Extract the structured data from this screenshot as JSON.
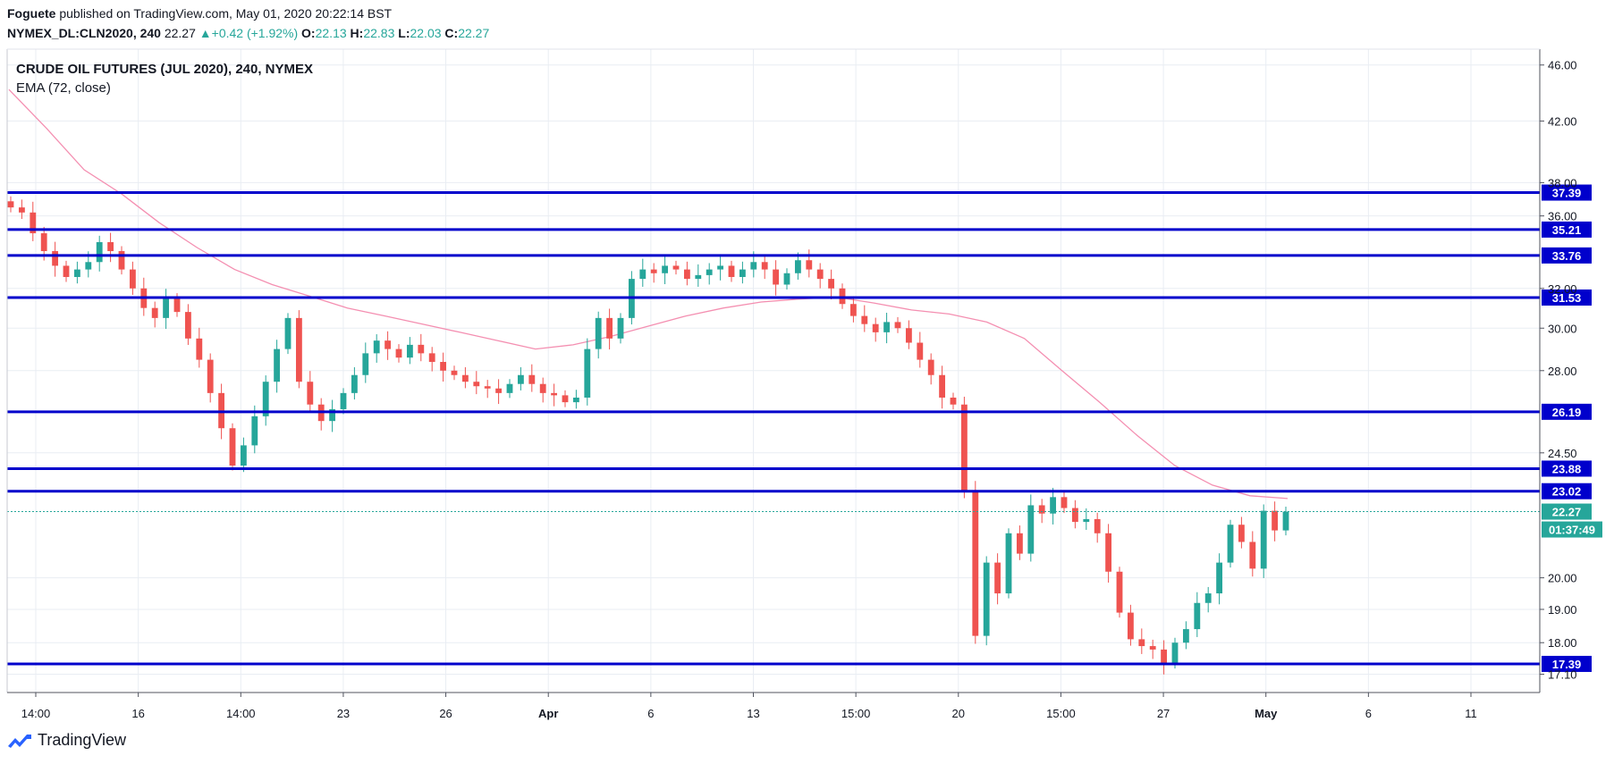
{
  "header": {
    "author": "Foguete",
    "published_text": "published on TradingView.com, May 01, 2020 20:22:14 BST",
    "symbol": "NYMEX_DL:CLN2020, 240",
    "last": "22.27",
    "change": "+0.42 (+1.92%)",
    "o_label": "O:",
    "o_value": "22.13",
    "h_label": "H:",
    "h_value": "22.83",
    "l_label": "L:",
    "l_value": "22.03",
    "c_label": "C:",
    "c_value": "22.27"
  },
  "footer": {
    "brand": "TradingView"
  },
  "colors": {
    "up": "#26a69a",
    "down": "#ef5350",
    "level": "#0000cc",
    "ema": "#f48fb1",
    "grid": "#e9edf3",
    "price_tag": "#26a69a"
  },
  "chart_data": {
    "type": "candlestick",
    "title": "CRUDE OIL FUTURES (JUL 2020), 240, NYMEX",
    "indicator": "EMA (72, close)",
    "y_scale": "log",
    "ylim": [
      16.6,
      47.2
    ],
    "y_ticks": [
      "46.00",
      "42.00",
      "38.00",
      "36.00",
      "32.00",
      "30.00",
      "28.00",
      "24.50",
      "20.00",
      "19.00",
      "18.00",
      "17.10"
    ],
    "y_tick_values": [
      46,
      42,
      38,
      36,
      32,
      30,
      28,
      24.5,
      20,
      19,
      18,
      17.1
    ],
    "x_ticks": [
      "14:00",
      "16",
      "14:00",
      "23",
      "26",
      "Apr",
      "6",
      "13",
      "15:00",
      "20",
      "15:00",
      "27",
      "May",
      "6",
      "11"
    ],
    "bold_x_ticks": [
      "Apr",
      "May"
    ],
    "horizontal_levels": [
      37.39,
      35.21,
      33.76,
      31.53,
      26.19,
      23.88,
      23.02,
      17.39
    ],
    "level_labels": [
      "37.39",
      "35.21",
      "33.76",
      "31.53",
      "26.19",
      "23.88",
      "23.02",
      "17.39"
    ],
    "last_price": 22.27,
    "last_price_label": "22.27",
    "countdown": "01:37:49",
    "close_path": [
      36.5,
      36.2,
      35.0,
      34.0,
      33.2,
      32.6,
      33.0,
      33.4,
      34.5,
      34.0,
      33.0,
      32.0,
      31.0,
      30.5,
      31.5,
      30.8,
      29.5,
      28.5,
      27.0,
      25.5,
      24.0,
      24.8,
      26.0,
      27.5,
      29.0,
      30.5,
      27.5,
      26.5,
      25.8,
      26.3,
      27.0,
      27.8,
      28.8,
      29.4,
      29.0,
      28.6,
      29.2,
      28.8,
      28.4,
      28.0,
      27.8,
      27.5,
      27.3,
      27.2,
      27.0,
      27.4,
      27.8,
      27.4,
      27.0,
      26.9,
      26.6,
      26.8,
      29.0,
      30.5,
      29.5,
      30.5,
      32.5,
      33.0,
      32.8,
      33.2,
      33.0,
      32.5,
      32.7,
      33.0,
      33.2,
      32.6,
      33.0,
      33.4,
      33.0,
      32.2,
      32.8,
      33.5,
      33.0,
      32.5,
      32.0,
      31.2,
      30.6,
      30.2,
      29.8,
      30.3,
      30.0,
      29.3,
      28.5,
      27.8,
      26.8,
      26.5,
      23.0,
      18.2,
      20.5,
      19.5,
      21.5,
      20.8,
      22.5,
      22.2,
      22.8,
      22.4,
      21.9,
      22.0,
      21.5,
      20.2,
      18.9,
      18.1,
      17.9,
      17.8,
      17.4,
      18.0,
      18.4,
      19.2,
      19.5,
      20.5,
      21.8,
      21.2,
      20.3,
      22.3,
      21.6,
      22.27
    ],
    "ema_path": [
      44.2,
      41.5,
      38.8,
      37.3,
      35.6,
      34.2,
      33.0,
      32.2,
      31.6,
      31.0,
      30.6,
      30.2,
      29.8,
      29.4,
      29.0,
      29.2,
      29.6,
      30.1,
      30.6,
      31.0,
      31.3,
      31.45,
      31.55,
      31.25,
      30.9,
      30.7,
      30.3,
      29.5,
      28.0,
      26.6,
      25.2,
      24.0,
      23.25,
      22.85,
      22.75
    ]
  }
}
